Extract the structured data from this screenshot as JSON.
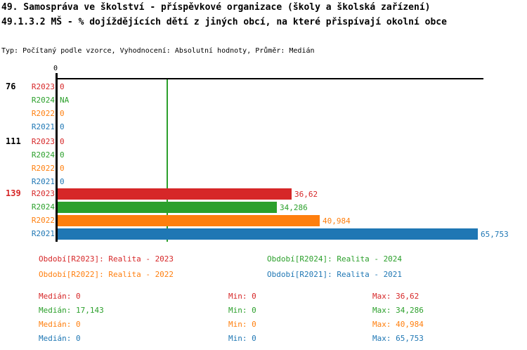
{
  "header": {
    "title_line1": "49. Samospráva ve školství - příspěvkové organizace (školy a školská zařízení)",
    "title_line2": "49.1.3.2 MŠ - % dojíždějících dětí z jiných obcí, na které přispívají okolní obce",
    "meta_line": "Typ: Počítaný podle vzorce, Vyhodnocení: Absolutní hodnoty, Průměr: Medián"
  },
  "chart_data": {
    "type": "bar",
    "orientation": "horizontal",
    "x_axis": {
      "zero_label": "0",
      "approx_max": 66.8,
      "grid": false
    },
    "median_line": {
      "series": "R2024",
      "value": 17.143,
      "color": "#2ca02c"
    },
    "series_colors": {
      "R2023": "#d62728",
      "R2024": "#2ca02c",
      "R2022": "#ff7f0e",
      "R2021": "#1f77b4"
    },
    "groups": [
      {
        "label": "76",
        "label_color": "#000000",
        "rows": [
          {
            "series": "R2023",
            "value": 0,
            "display": "0"
          },
          {
            "series": "R2024",
            "value": null,
            "display": "NA"
          },
          {
            "series": "R2022",
            "value": 0,
            "display": "0"
          },
          {
            "series": "R2021",
            "value": 0,
            "display": "0"
          }
        ]
      },
      {
        "label": "111",
        "label_color": "#000000",
        "rows": [
          {
            "series": "R2023",
            "value": 0,
            "display": "0"
          },
          {
            "series": "R2024",
            "value": 0,
            "display": "0"
          },
          {
            "series": "R2022",
            "value": 0,
            "display": "0"
          },
          {
            "series": "R2021",
            "value": 0,
            "display": "0"
          }
        ]
      },
      {
        "label": "139",
        "label_color": "#d62728",
        "rows": [
          {
            "series": "R2023",
            "value": 36.62,
            "display": "36,62"
          },
          {
            "series": "R2024",
            "value": 34.286,
            "display": "34,286"
          },
          {
            "series": "R2022",
            "value": 40.984,
            "display": "40,984"
          },
          {
            "series": "R2021",
            "value": 65.753,
            "display": "65,753"
          }
        ]
      }
    ]
  },
  "legend": {
    "items": [
      {
        "label": "Období[R2023]: Realita - 2023",
        "color": "#d62728"
      },
      {
        "label": "Období[R2024]: Realita - 2024",
        "color": "#2ca02c"
      },
      {
        "label": "Období[R2022]: Realita - 2022",
        "color": "#ff7f0e"
      },
      {
        "label": "Období[R2021]: Realita - 2021",
        "color": "#1f77b4"
      }
    ]
  },
  "stats": {
    "rows": [
      {
        "median": "Medián: 0",
        "min": "Min: 0",
        "max": "Max: 36,62",
        "color": "#d62728"
      },
      {
        "median": "Medián: 17,143",
        "min": "Min: 0",
        "max": "Max: 34,286",
        "color": "#2ca02c"
      },
      {
        "median": "Medián: 0",
        "min": "Min: 0",
        "max": "Max: 40,984",
        "color": "#ff7f0e"
      },
      {
        "median": "Medián: 0",
        "min": "Min: 0",
        "max": "Max: 65,753",
        "color": "#1f77b4"
      }
    ]
  }
}
